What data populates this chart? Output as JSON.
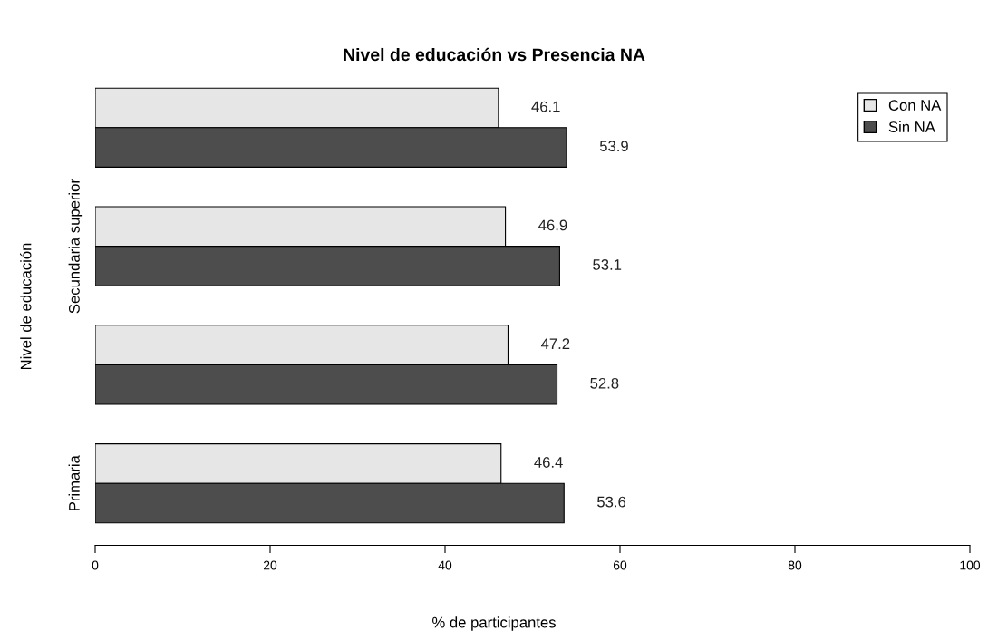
{
  "chart_data": {
    "type": "bar",
    "orientation": "horizontal",
    "title": "Nivel de educación vs Presencia NA",
    "xlabel": "% de participantes",
    "ylabel": "Nivel de educación",
    "categories": [
      null,
      "Secundaria superior",
      null,
      "Primaria"
    ],
    "series": [
      {
        "name": "Con NA",
        "color": "#e6e6e6",
        "values": [
          46.1,
          46.9,
          47.2,
          46.4
        ]
      },
      {
        "name": "Sin NA",
        "color": "#4d4d4d",
        "values": [
          53.9,
          53.1,
          52.8,
          53.6
        ]
      }
    ],
    "xlim": [
      0,
      100
    ],
    "xticks": [
      0,
      20,
      40,
      60,
      80,
      100
    ],
    "data_labels": true,
    "legend": "top right",
    "grid": false
  }
}
